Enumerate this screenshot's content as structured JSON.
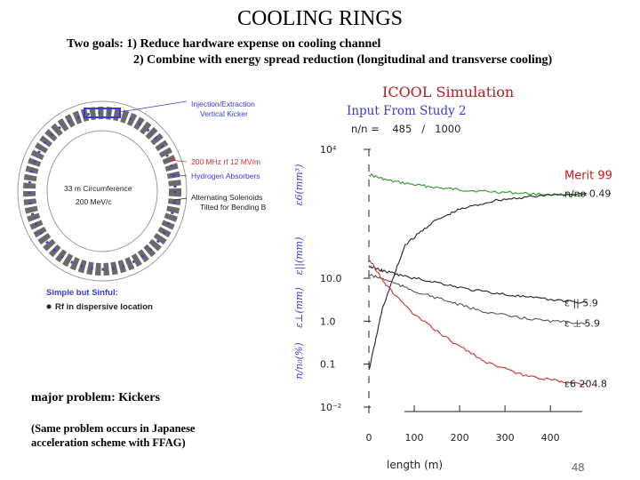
{
  "slide": {
    "title": "COOLING RINGS",
    "goal_line1": "Two goals:  1) Reduce hardware expense on cooling channel",
    "goal_line2": "2) Combine with energy spread reduction  (longitudinal and transverse cooling)",
    "problem": "major problem: Kickers",
    "note_line1": "(Same problem occurs in Japanese",
    "note_line2": "acceleration scheme with FFAG)",
    "page_number": "48"
  },
  "ring_diagram": {
    "labels": {
      "injection": "Injection/Extraction",
      "kicker": "Vertical Kicker",
      "rf": "200 MHz rf  12 MV/m",
      "absorbers": "Hydrogen Absorbers",
      "solenoids1": "Alternating Solenoids",
      "solenoids2": "Tilted for Bending B",
      "circumference": "33 m Circumference",
      "momentum": "200 MeV/c",
      "simple": "Simple but Sinful:",
      "rf_location": "Rf in dispersive location"
    },
    "colors": {
      "blue": "#3a3ad0",
      "red": "#d03030",
      "dark": "#222222"
    }
  },
  "chart_data": {
    "type": "line",
    "title": "ICOOL Simulation",
    "subtitle": "Input From Study 2",
    "count_label": "n/n =    485   /   1000",
    "xlabel": "length  (m)",
    "x_ticks": [
      "0",
      "100",
      "200",
      "300",
      "400"
    ],
    "xlim": [
      0,
      480
    ],
    "y_tick_labels": [
      "10⁴",
      "10.0",
      "1.0",
      "0.1",
      "10⁻²"
    ],
    "yscale": "log",
    "ylim": [
      0.01,
      10000
    ],
    "ylabels": [
      "ε6(mm³)",
      "ε||(mm)",
      "ε⊥(mm)",
      "n/n₀(%)"
    ],
    "merit_label": "Merit",
    "merit_value": "99",
    "series": [
      {
        "name": "Merit",
        "color": "#2a9a2a",
        "label": "Merit  99",
        "x": [
          0,
          40,
          100,
          160,
          220,
          300,
          380,
          480
        ],
        "values": [
          2600,
          1900,
          1500,
          1250,
          1100,
          1000,
          900,
          850
        ]
      },
      {
        "name": "n/no",
        "color": "#222222",
        "label": "n/no 0.49",
        "x": [
          0,
          30,
          80,
          140,
          200,
          280,
          360,
          480
        ],
        "values": [
          0.07,
          2,
          60,
          200,
          400,
          650,
          800,
          950
        ]
      },
      {
        "name": "ε||",
        "color": "#222222",
        "label": "ε ||    5.9",
        "x": [
          0,
          30,
          80,
          150,
          220,
          300,
          380,
          480
        ],
        "values": [
          19,
          15,
          11,
          8,
          5.5,
          4.2,
          3.3,
          2.7
        ]
      },
      {
        "name": "ε⊥",
        "color": "#555555",
        "label": "ε ⊥    5.9",
        "x": [
          0,
          40,
          100,
          170,
          240,
          320,
          400,
          480
        ],
        "values": [
          12,
          9,
          5,
          3,
          1.8,
          1.25,
          1,
          0.9
        ]
      },
      {
        "name": "ε6",
        "color": "#c83030",
        "label": "ε6 204.8",
        "x": [
          0,
          40,
          100,
          180,
          260,
          340,
          420,
          480
        ],
        "values": [
          28,
          6.5,
          1.4,
          0.35,
          0.11,
          0.055,
          0.04,
          0.035
        ]
      }
    ]
  }
}
